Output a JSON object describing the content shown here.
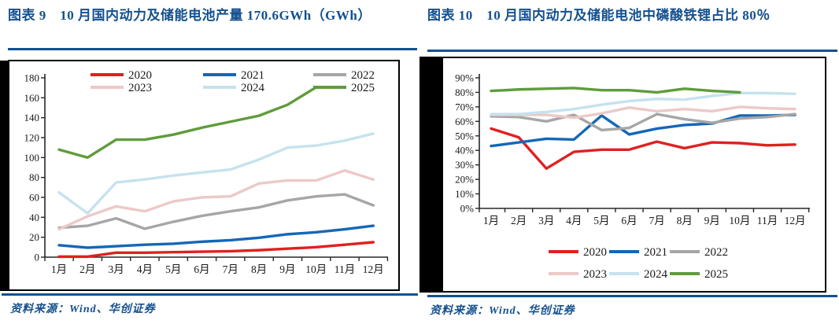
{
  "page": {
    "figures": [
      {
        "caption": "图表 9　10 月国内动力及储能电池产量 170.6GWh（GWh）",
        "source": "资料来源：Wind、华创证券"
      },
      {
        "caption": "图表 10　10 月国内动力及储能电池中磷酸铁锂占比 80％",
        "source": "资料来源：Wind、华创证券"
      }
    ],
    "accent_color": "#14508e"
  },
  "chart_data": [
    {
      "type": "line",
      "title": "10月国内动力及储能电池产量（GWh）",
      "categories": [
        "1月",
        "2月",
        "3月",
        "4月",
        "5月",
        "6月",
        "7月",
        "8月",
        "9月",
        "10月",
        "11月",
        "12月"
      ],
      "ylim": [
        0,
        180
      ],
      "ytick_labels": [
        "0",
        "20",
        "40",
        "60",
        "80",
        "100",
        "120",
        "140",
        "160",
        "180"
      ],
      "grid": false,
      "legend_position": "top-inside",
      "series": [
        {
          "name": "2020",
          "color": "#e02020",
          "values": [
            0.5,
            0.5,
            4.5,
            4.5,
            5,
            5.5,
            6,
            7,
            8.5,
            10,
            12.5,
            15
          ]
        },
        {
          "name": "2021",
          "color": "#1467b8",
          "values": [
            12,
            9.5,
            11,
            12.5,
            13.5,
            15.5,
            17,
            19.5,
            23,
            25,
            28,
            31.5
          ]
        },
        {
          "name": "2022",
          "color": "#a6a6a6",
          "values": [
            29.5,
            31.5,
            39,
            28.5,
            35.5,
            41.5,
            46,
            50,
            57,
            61,
            63,
            52
          ]
        },
        {
          "name": "2023",
          "color": "#ecc9c8",
          "values": [
            28,
            41,
            51,
            46,
            56,
            60,
            61,
            74,
            77,
            77,
            87,
            78
          ]
        },
        {
          "name": "2024",
          "color": "#c6e2ee",
          "values": [
            65,
            44,
            75,
            78,
            82,
            85,
            88,
            98,
            110,
            112,
            117,
            124
          ]
        },
        {
          "name": "2025",
          "color": "#5f9c3c",
          "values": [
            108,
            100,
            118,
            118,
            123,
            130,
            136,
            142,
            153,
            170.6
          ]
        }
      ]
    },
    {
      "type": "line",
      "title": "10月国内动力及储能电池中磷酸铁锂占比",
      "categories": [
        "1月",
        "2月",
        "3月",
        "4月",
        "5月",
        "6月",
        "7月",
        "8月",
        "9月",
        "10月",
        "11月",
        "12月"
      ],
      "ylim": [
        0,
        90
      ],
      "ytick_labels": [
        "0%",
        "10%",
        "20%",
        "30%",
        "40%",
        "50%",
        "60%",
        "70%",
        "80%",
        "90%"
      ],
      "grid": false,
      "legend_position": "bottom",
      "series": [
        {
          "name": "2020",
          "color": "#e02020",
          "values": [
            55,
            49,
            27.5,
            39,
            40.5,
            40.5,
            46,
            41.5,
            45.5,
            45,
            43.5,
            44
          ]
        },
        {
          "name": "2021",
          "color": "#1467b8",
          "values": [
            43,
            45.5,
            48,
            47.5,
            64,
            51,
            55,
            57.5,
            58.5,
            64,
            64,
            64.5
          ]
        },
        {
          "name": "2022",
          "color": "#a6a6a6",
          "values": [
            63.5,
            63,
            60,
            64.5,
            54,
            55.5,
            65,
            61.5,
            59,
            62,
            63,
            65
          ]
        },
        {
          "name": "2023",
          "color": "#ecc9c8",
          "values": [
            64.5,
            64.5,
            64.5,
            62.5,
            65.5,
            69.5,
            67,
            68.5,
            67,
            70,
            69,
            68.5
          ]
        },
        {
          "name": "2024",
          "color": "#c6e2ee",
          "values": [
            65,
            65,
            66.5,
            68.5,
            71.5,
            74,
            75.5,
            75,
            77.5,
            79.5,
            79.5,
            79
          ]
        },
        {
          "name": "2025",
          "color": "#5f9c3c",
          "values": [
            81,
            82,
            82.5,
            83,
            81.5,
            81.5,
            80,
            82.5,
            81,
            80
          ]
        }
      ]
    }
  ]
}
